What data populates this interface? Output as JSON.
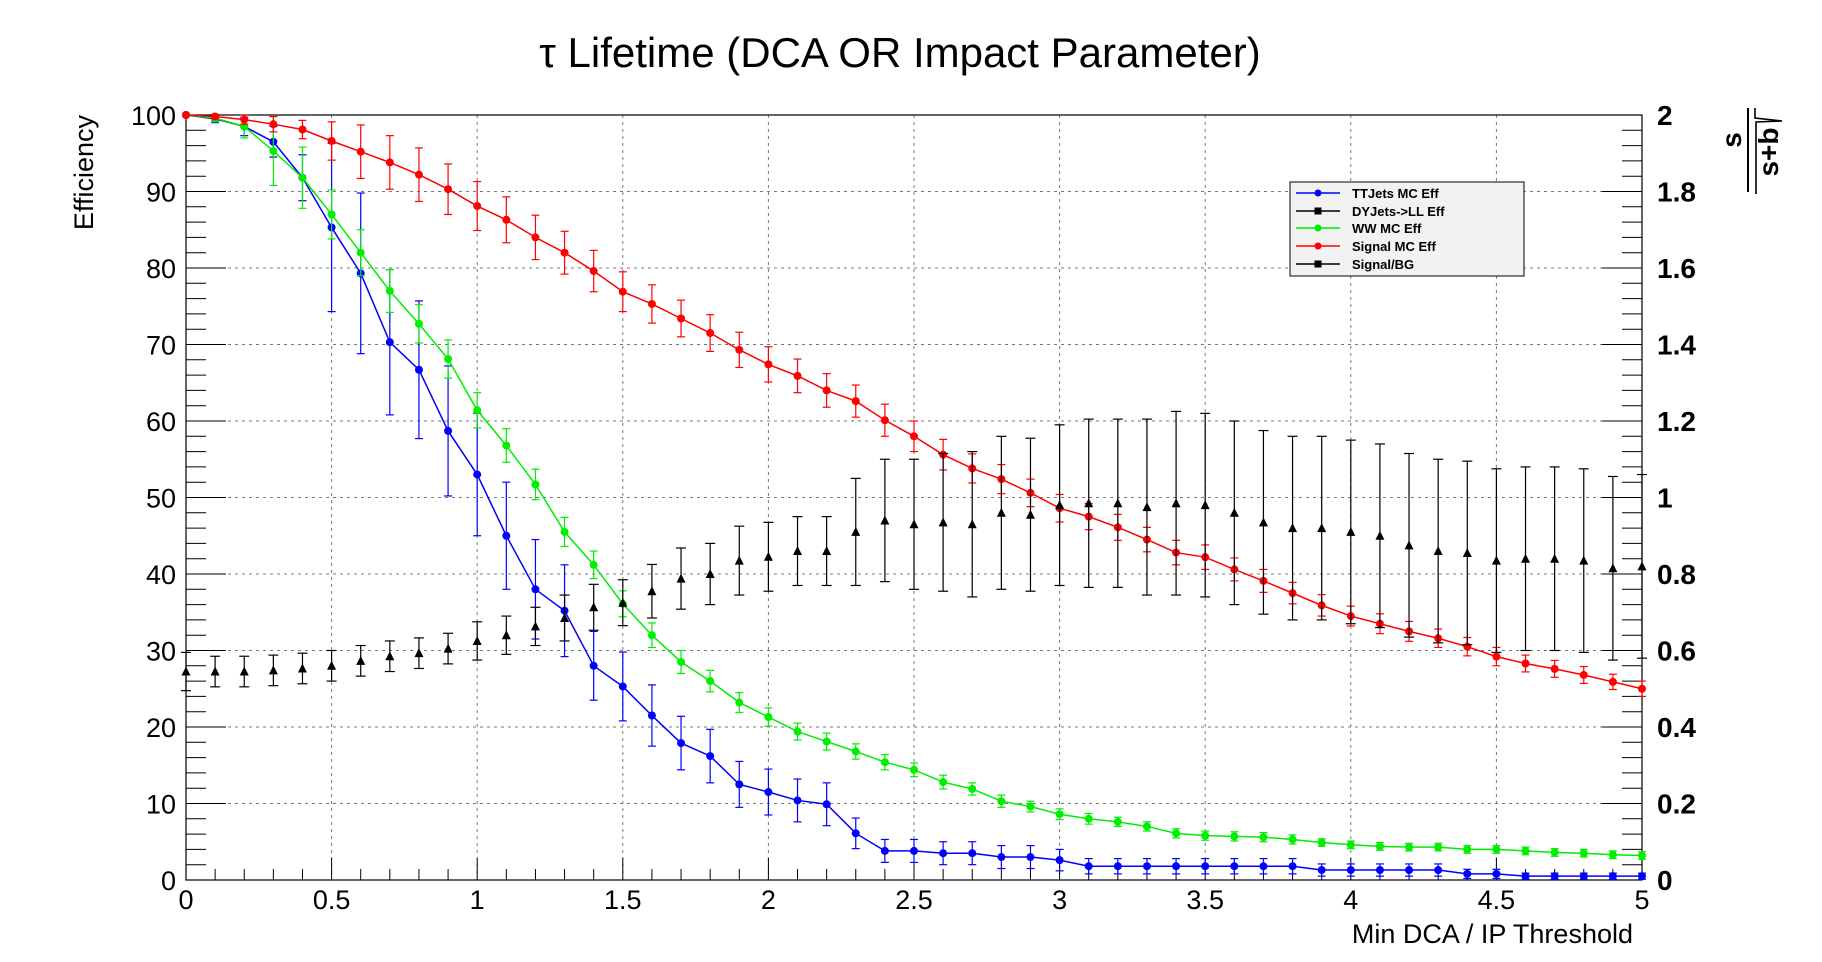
{
  "chart_data": {
    "type": "scatter",
    "title": "τ Lifetime (DCA OR Impact Parameter)",
    "xlabel": "Min DCA / IP Threshold",
    "ylabel": "Efficiency",
    "ylabel_right_numerator": "s",
    "ylabel_right_denominator": "s+b",
    "xlim": [
      0,
      5
    ],
    "ylim": [
      0,
      100
    ],
    "ylim_right": [
      0,
      2
    ],
    "grid": true,
    "legend_position": "top-right",
    "x_ticks": [
      "0",
      "0.5",
      "1",
      "1.5",
      "2",
      "2.5",
      "3",
      "3.5",
      "4",
      "4.5",
      "5"
    ],
    "y_ticks": [
      "0",
      "10",
      "20",
      "30",
      "40",
      "50",
      "60",
      "70",
      "80",
      "90",
      "100"
    ],
    "y_right_ticks": [
      "0",
      "0.2",
      "0.4",
      "0.6",
      "0.8",
      "1",
      "1.2",
      "1.4",
      "1.6",
      "1.8",
      "2"
    ],
    "x": [
      0,
      0.1,
      0.2,
      0.3,
      0.4,
      0.5,
      0.6,
      0.7,
      0.8,
      0.9,
      1.0,
      1.1,
      1.2,
      1.3,
      1.4,
      1.5,
      1.6,
      1.7,
      1.8,
      1.9,
      2.0,
      2.1,
      2.2,
      2.3,
      2.4,
      2.5,
      2.6,
      2.7,
      2.8,
      2.9,
      3.0,
      3.1,
      3.2,
      3.3,
      3.4,
      3.5,
      3.6,
      3.7,
      3.8,
      3.9,
      4.0,
      4.1,
      4.2,
      4.3,
      4.4,
      4.5,
      4.6,
      4.7,
      4.8,
      4.9,
      5.0
    ],
    "series": [
      {
        "name": "TTJets MC Eff",
        "color": "#0000ff",
        "marker": "circle",
        "axis": "left",
        "line": true,
        "values": [
          100,
          99.5,
          98.5,
          96.5,
          91.8,
          85.3,
          79.3,
          70.3,
          66.7,
          58.7,
          53.0,
          45.0,
          38.0,
          35.2,
          28.0,
          25.3,
          21.5,
          17.9,
          16.2,
          12.5,
          11.5,
          10.4,
          9.9,
          6.1,
          3.8,
          3.8,
          3.5,
          3.5,
          3.0,
          3.0,
          2.6,
          1.8,
          1.8,
          1.8,
          1.8,
          1.8,
          1.8,
          1.8,
          1.8,
          1.3,
          1.3,
          1.3,
          1.3,
          1.3,
          0.8,
          0.8,
          0.5,
          0.5,
          0.5,
          0.5,
          0.5
        ],
        "errors": [
          0,
          0.5,
          1.2,
          2.0,
          3.0,
          11.0,
          10.5,
          9.5,
          9.0,
          8.5,
          8.0,
          7.0,
          6.5,
          6.0,
          4.5,
          4.5,
          4.0,
          3.5,
          3.5,
          3.0,
          3.0,
          2.8,
          2.8,
          2.0,
          1.5,
          1.5,
          1.5,
          1.5,
          1.5,
          1.5,
          1.4,
          1.0,
          1.0,
          1.0,
          1.0,
          1.0,
          1.0,
          1.0,
          1.0,
          0.8,
          0.8,
          0.8,
          0.8,
          0.8,
          0.6,
          0.6,
          0.4,
          0.4,
          0.4,
          0.4,
          0.4
        ]
      },
      {
        "name": "DYJets->LL Eff",
        "color": "#000000",
        "marker": "square",
        "axis": "left",
        "line": true,
        "values": [],
        "errors": []
      },
      {
        "name": "WW MC Eff",
        "color": "#00ee00",
        "marker": "circle",
        "axis": "left",
        "line": true,
        "values": [
          100,
          99.6,
          98.5,
          95.3,
          91.8,
          87.0,
          82.0,
          77.0,
          72.7,
          68.1,
          61.4,
          56.8,
          51.7,
          45.5,
          41.2,
          36.1,
          32.0,
          28.5,
          26.0,
          23.2,
          21.3,
          19.4,
          18.1,
          16.8,
          15.4,
          14.4,
          12.8,
          11.9,
          10.3,
          9.6,
          8.6,
          8.0,
          7.6,
          7.0,
          6.1,
          5.8,
          5.7,
          5.6,
          5.3,
          4.9,
          4.6,
          4.4,
          4.3,
          4.3,
          4.0,
          4.0,
          3.8,
          3.6,
          3.5,
          3.3,
          3.2
        ],
        "errors": [
          0,
          0.5,
          1.5,
          4.5,
          4.0,
          3.2,
          3.0,
          2.8,
          2.5,
          2.5,
          2.3,
          2.2,
          2.0,
          1.9,
          1.8,
          1.7,
          1.6,
          1.5,
          1.4,
          1.3,
          1.2,
          1.1,
          1.1,
          1.0,
          1.0,
          0.9,
          0.9,
          0.8,
          0.8,
          0.7,
          0.7,
          0.7,
          0.6,
          0.6,
          0.6,
          0.6,
          0.6,
          0.6,
          0.6,
          0.5,
          0.5,
          0.5,
          0.5,
          0.5,
          0.5,
          0.5,
          0.5,
          0.5,
          0.5,
          0.5,
          0.5
        ]
      },
      {
        "name": "Signal MC Eff",
        "color": "#ff0000",
        "marker": "circle",
        "axis": "left",
        "line": true,
        "values": [
          100,
          99.8,
          99.4,
          98.8,
          98.1,
          96.6,
          95.2,
          93.8,
          92.2,
          90.3,
          88.1,
          86.3,
          84.0,
          82.0,
          79.6,
          76.9,
          75.3,
          73.4,
          71.5,
          69.3,
          67.4,
          65.9,
          64.0,
          62.6,
          60.1,
          58.0,
          55.6,
          53.8,
          52.4,
          50.6,
          48.6,
          47.5,
          46.1,
          44.5,
          42.8,
          42.2,
          40.6,
          39.1,
          37.5,
          35.9,
          34.5,
          33.5,
          32.5,
          31.6,
          30.5,
          29.2,
          28.3,
          27.6,
          26.8,
          25.9,
          25.0
        ],
        "errors": [
          0,
          0.3,
          0.6,
          1.0,
          1.2,
          2.5,
          3.5,
          3.5,
          3.5,
          3.3,
          3.2,
          3.0,
          2.9,
          2.8,
          2.7,
          2.6,
          2.5,
          2.4,
          2.4,
          2.3,
          2.3,
          2.2,
          2.2,
          2.1,
          2.1,
          2.0,
          2.0,
          1.9,
          1.9,
          1.8,
          1.8,
          1.7,
          1.7,
          1.6,
          1.6,
          1.6,
          1.5,
          1.5,
          1.4,
          1.4,
          1.3,
          1.3,
          1.3,
          1.2,
          1.2,
          1.2,
          1.1,
          1.1,
          1.1,
          1.0,
          1.0
        ]
      },
      {
        "name": "Signal/BG",
        "color": "#000000",
        "marker": "triangle",
        "axis": "right",
        "line": false,
        "values": [
          0.545,
          0.545,
          0.545,
          0.548,
          0.553,
          0.56,
          0.573,
          0.585,
          0.593,
          0.605,
          0.625,
          0.64,
          0.663,
          0.685,
          0.713,
          0.725,
          0.755,
          0.788,
          0.8,
          0.835,
          0.845,
          0.86,
          0.86,
          0.91,
          0.94,
          0.93,
          0.935,
          0.93,
          0.96,
          0.955,
          0.98,
          0.985,
          0.985,
          0.975,
          0.985,
          0.98,
          0.96,
          0.935,
          0.92,
          0.92,
          0.91,
          0.9,
          0.875,
          0.86,
          0.855,
          0.835,
          0.84,
          0.84,
          0.835,
          0.815,
          0.82
        ],
        "errors": [
          0.05,
          0.04,
          0.04,
          0.04,
          0.04,
          0.04,
          0.04,
          0.04,
          0.04,
          0.04,
          0.05,
          0.05,
          0.05,
          0.06,
          0.06,
          0.06,
          0.07,
          0.08,
          0.08,
          0.09,
          0.09,
          0.09,
          0.09,
          0.14,
          0.16,
          0.17,
          0.18,
          0.19,
          0.2,
          0.2,
          0.21,
          0.22,
          0.22,
          0.23,
          0.24,
          0.24,
          0.24,
          0.24,
          0.24,
          0.24,
          0.24,
          0.24,
          0.24,
          0.24,
          0.24,
          0.24,
          0.24,
          0.24,
          0.24,
          0.24,
          0.24
        ]
      }
    ]
  }
}
